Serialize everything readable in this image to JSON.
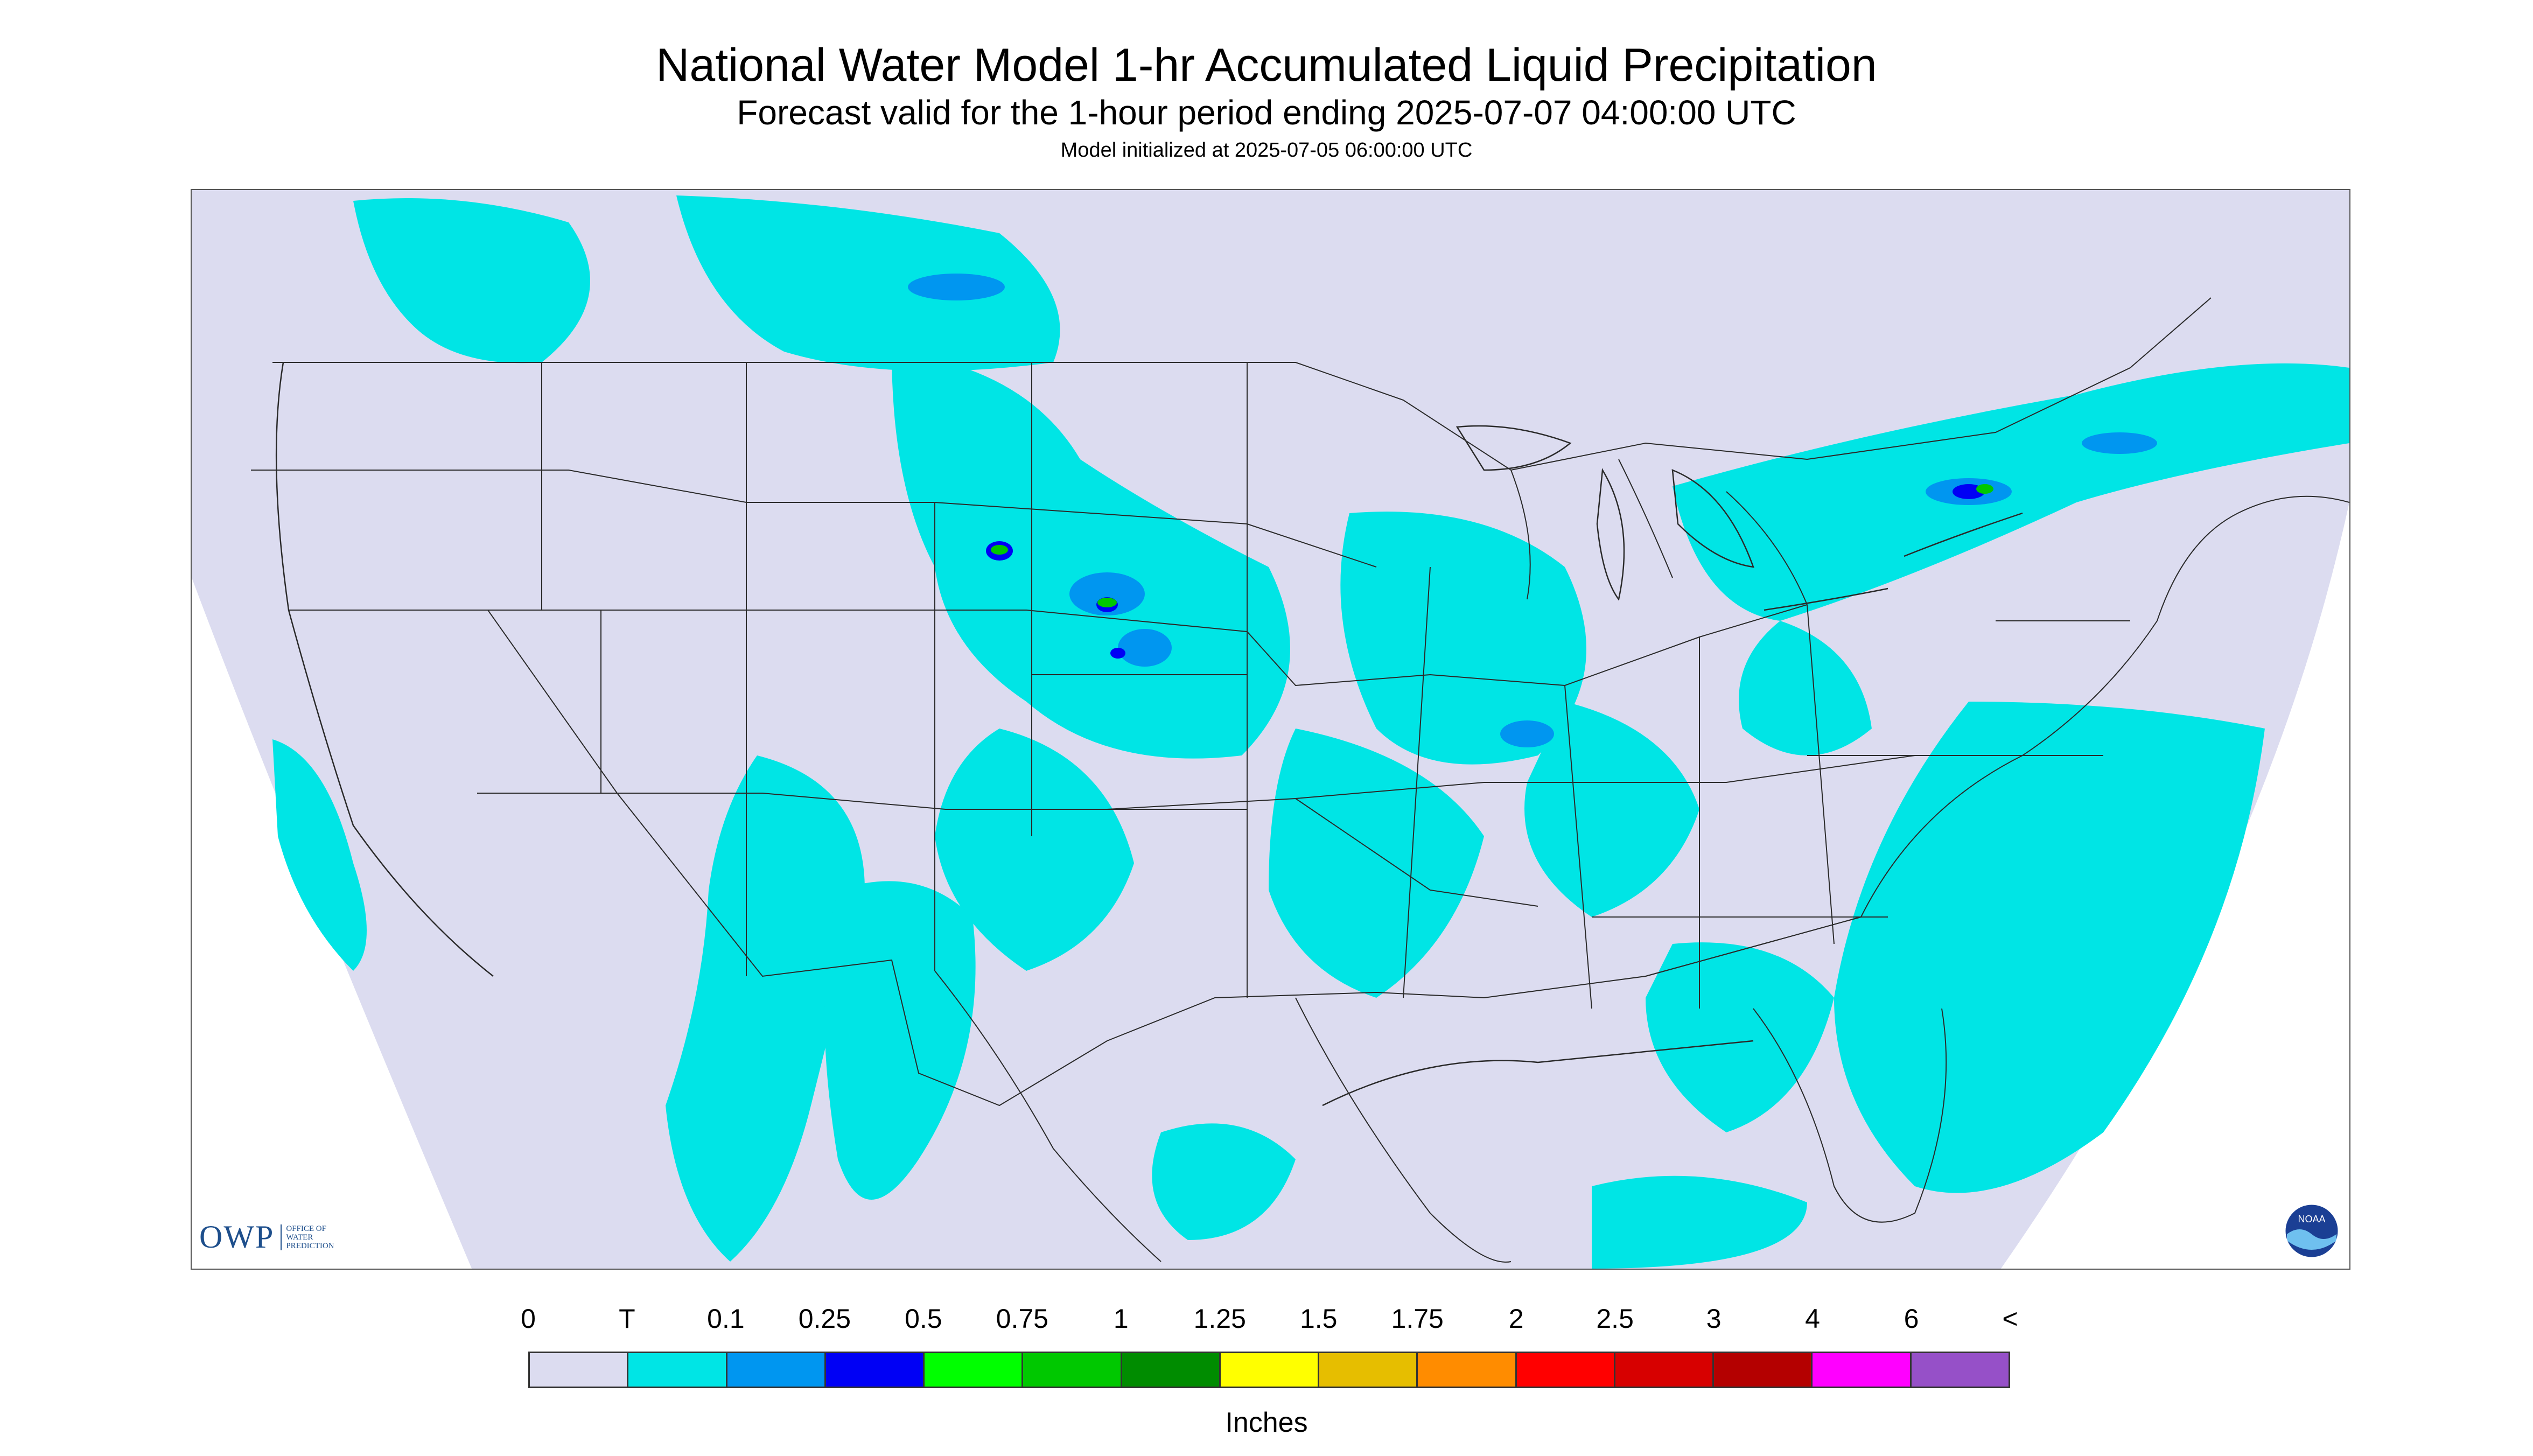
{
  "title": "National Water Model 1-hr Accumulated Liquid Precipitation",
  "subtitle": "Forecast valid for the 1-hour period ending 2025-07-07 04:00:00 UTC",
  "init_line": "Model initialized at 2025-07-05 06:00:00 UTC",
  "map": {
    "region": "Continental United States",
    "background_color": "#dcdcf0",
    "outside_domain_color": "#ffffff",
    "boundary_color": "#2a2a2a"
  },
  "logos": {
    "owp_text": "OWP",
    "owp_small": [
      "OFFICE OF",
      "WATER",
      "PREDICTION"
    ],
    "noaa_text": "NOAA"
  },
  "legend": {
    "units": "Inches",
    "labels": [
      "0",
      "T",
      "0.1",
      "0.25",
      "0.5",
      "0.75",
      "1",
      "1.25",
      "1.5",
      "1.75",
      "2",
      "2.5",
      "3",
      "4",
      "6",
      "<"
    ],
    "colors": [
      "#dcdcf0",
      "#00e5e5",
      "#0096f0",
      "#0000f5",
      "#00ff00",
      "#00c800",
      "#008c00",
      "#ffff00",
      "#e6be00",
      "#ff8c00",
      "#ff0000",
      "#d70000",
      "#b40000",
      "#ff00ff",
      "#9650c8"
    ]
  }
}
